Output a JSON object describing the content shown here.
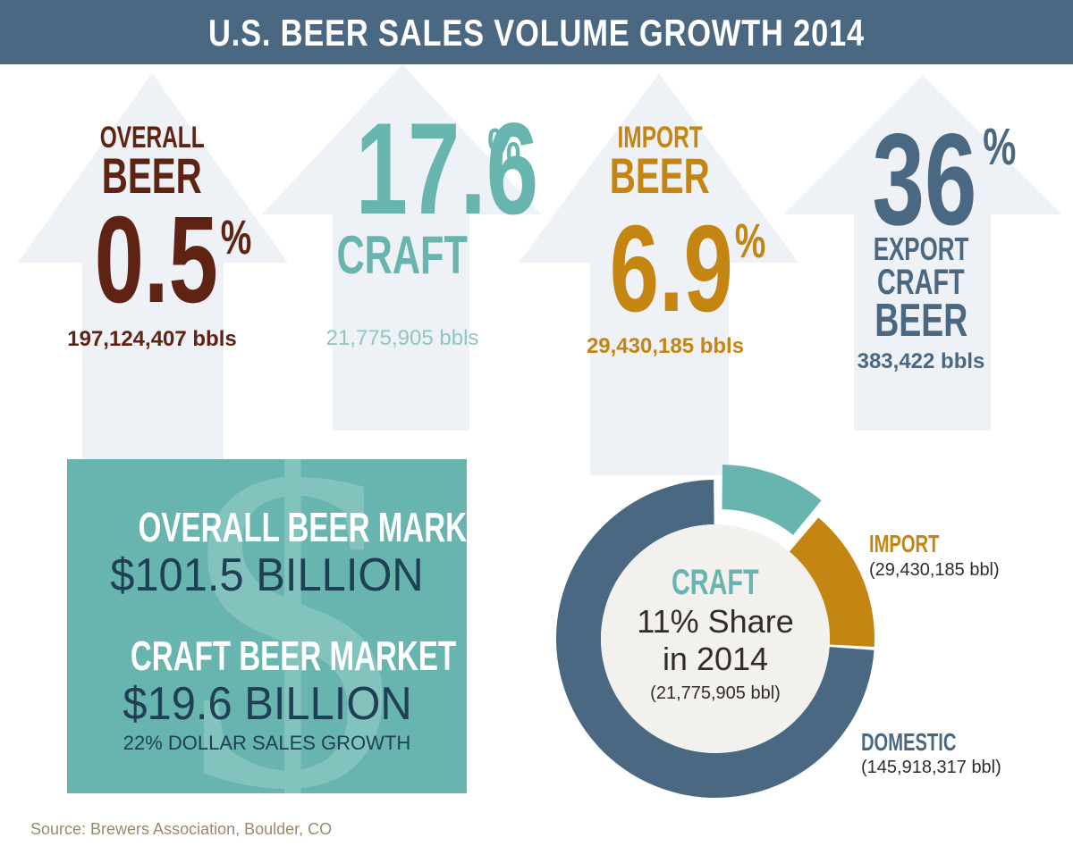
{
  "title": "U.S. BEER SALES VOLUME GROWTH 2014",
  "colors": {
    "header": "#4b6882",
    "arrow": "#eef1f5",
    "overall": "#5e2313",
    "craft": "#68b4ae",
    "import": "#c48512",
    "export": "#4b6882",
    "domestic": "#4b6882"
  },
  "stats": {
    "overall": {
      "label_top": "OVERALL",
      "label_bottom": "BEER",
      "value": "0.5",
      "pct": "%",
      "volume": "197,124,407 bbls"
    },
    "craft": {
      "value": "17.6",
      "pct": "%",
      "label": "CRAFT",
      "volume": "21,775,905 bbls"
    },
    "import": {
      "label_top": "IMPORT",
      "label_bottom": "BEER",
      "value": "6.9",
      "pct": "%",
      "volume": "29,430,185 bbls"
    },
    "export": {
      "value": "36",
      "pct": "%",
      "label_1": "EXPORT",
      "label_2": "CRAFT",
      "label_3": "BEER",
      "volume": "383,422 bbls"
    }
  },
  "market": {
    "overall_label": "OVERALL BEER MARKET",
    "overall_value": "$101.5 BILLION",
    "craft_label": "CRAFT BEER MARKET",
    "craft_value": "$19.6 BILLION",
    "growth": "22% DOLLAR SALES GROWTH"
  },
  "donut": {
    "center_label": "CRAFT",
    "center_line1": "11% Share",
    "center_line2": "in 2014",
    "center_volume": "(21,775,905 bbl)",
    "import_label": "IMPORT",
    "import_volume": "(29,430,185 bbl)",
    "domestic_label": "DOMESTIC",
    "domestic_volume": "(145,918,317 bbl)"
  },
  "chart_data": {
    "type": "pie",
    "title": "",
    "categories": [
      "CRAFT",
      "IMPORT",
      "DOMESTIC"
    ],
    "values": [
      21775905,
      29430185,
      145918317
    ],
    "colors": [
      "#68b4ae",
      "#c48512",
      "#4b6882"
    ],
    "exploded": "CRAFT"
  },
  "source": "Source: Brewers Association, Boulder, CO"
}
